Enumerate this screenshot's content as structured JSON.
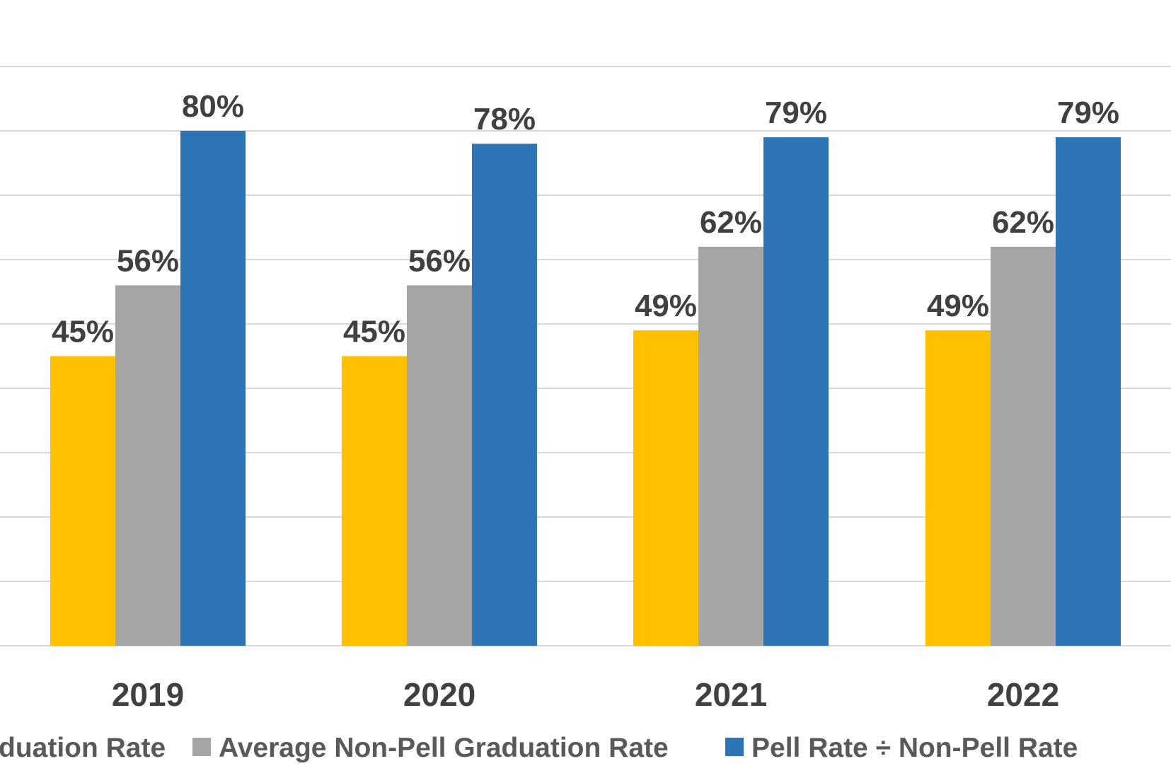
{
  "chart_data": {
    "type": "bar",
    "categories": [
      "2019",
      "2020",
      "2021",
      "2022"
    ],
    "series": [
      {
        "name": "Average Pell Graduation Rate",
        "legend_visible_text": "duation Rate",
        "color": "#FFC000",
        "values": [
          45,
          45,
          49,
          49
        ],
        "labels": [
          "45%",
          "45%",
          "49%",
          "49%"
        ]
      },
      {
        "name": "Average Non-Pell Graduation Rate",
        "legend_visible_text": "Average Non-Pell Graduation Rate",
        "color": "#A5A5A5",
        "values": [
          56,
          56,
          62,
          62
        ],
        "labels": [
          "56%",
          "56%",
          "62%",
          "62%"
        ]
      },
      {
        "name": "Pell Rate ÷ Non-Pell Rate",
        "legend_visible_text": "Pell Rate ÷ Non-Pell Rate",
        "color": "#2E75B6",
        "values": [
          80,
          78,
          79,
          79
        ],
        "labels": [
          "80%",
          "78%",
          "79%",
          "79%"
        ]
      }
    ],
    "ylim": [
      0,
      90
    ],
    "grid": true,
    "legend": "bottom",
    "title": "",
    "xlabel": "",
    "ylabel": ""
  }
}
